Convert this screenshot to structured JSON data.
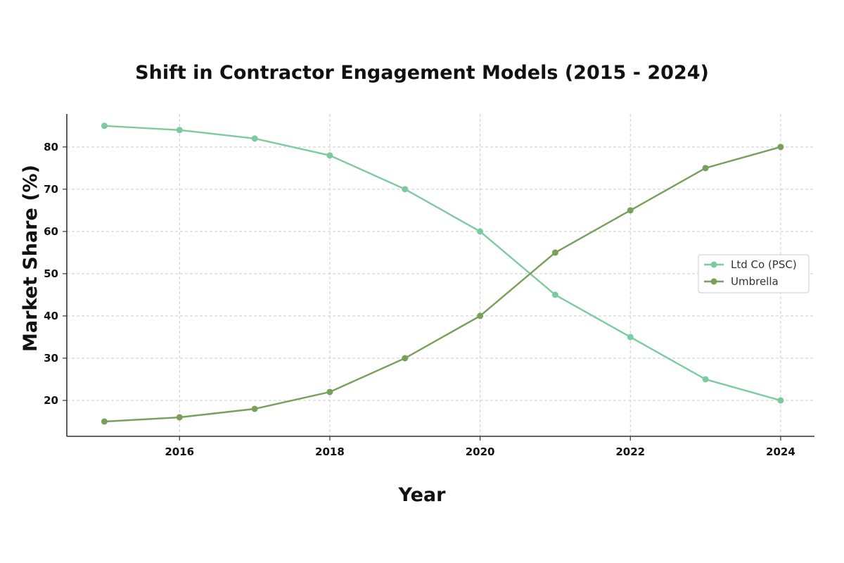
{
  "chart_data": {
    "type": "line",
    "title": "Shift in Contractor Engagement Models (2015 - 2024)",
    "xlabel": "Year",
    "ylabel": "Market Share (%)",
    "x": [
      2015,
      2016,
      2017,
      2018,
      2019,
      2020,
      2021,
      2022,
      2023,
      2024
    ],
    "xticks": [
      2016,
      2018,
      2020,
      2022,
      2024
    ],
    "yticks": [
      20,
      30,
      40,
      50,
      60,
      70,
      80
    ],
    "xlim": [
      2014.5,
      2024.45
    ],
    "ylim": [
      11.5,
      87.8
    ],
    "grid": true,
    "legend_position": "center-right",
    "series": [
      {
        "name": "Ltd Co (PSC)",
        "color": "#7ccba0",
        "values": [
          85,
          84,
          82,
          78,
          70,
          60,
          45,
          35,
          25,
          20
        ]
      },
      {
        "name": "Umbrella",
        "color": "#78a05a",
        "values": [
          15,
          16,
          18,
          22,
          30,
          40,
          55,
          65,
          75,
          80
        ]
      }
    ]
  }
}
